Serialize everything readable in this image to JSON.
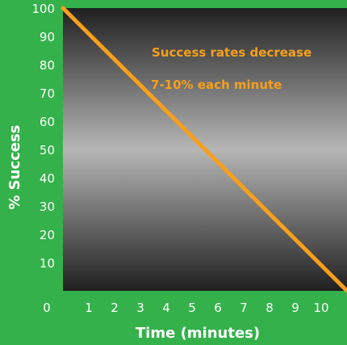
{
  "colors": {
    "background": "#34b14b",
    "line": "#f7a01c",
    "annotation": "#f7a01c",
    "text": "#ffffff",
    "plot_top": "#202020",
    "plot_middle": "#b6b6b6",
    "plot_bottom": "#202020"
  },
  "chart_data": {
    "type": "line",
    "xlabel": "Time (minutes)",
    "ylabel": "% Success",
    "xlim": [
      0,
      11
    ],
    "ylim": [
      0,
      100
    ],
    "x_ticks": [
      1,
      2,
      3,
      4,
      5,
      6,
      7,
      8,
      9,
      10
    ],
    "y_ticks": [
      10,
      20,
      30,
      40,
      50,
      60,
      70,
      80,
      90,
      100
    ],
    "origin_label": "0",
    "grid": false,
    "series": [
      {
        "points": [
          {
            "x": 0,
            "y": 100
          },
          {
            "x": 11,
            "y": 0
          }
        ]
      }
    ],
    "annotations": [
      "Success rates decrease",
      "7-10% each minute"
    ]
  }
}
